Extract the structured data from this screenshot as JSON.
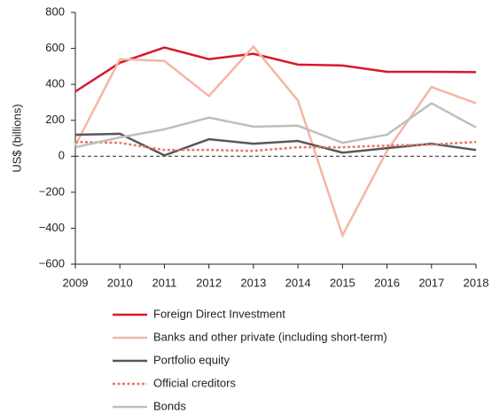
{
  "chart_data": {
    "type": "line",
    "y_label": "US$ (billions)",
    "x": [
      2009,
      2010,
      2011,
      2012,
      2013,
      2014,
      2015,
      2016,
      2017,
      2018
    ],
    "xlim": [
      2009,
      2018
    ],
    "xticks": [
      2009,
      2010,
      2011,
      2012,
      2013,
      2014,
      2015,
      2016,
      2017,
      2018
    ],
    "ylim": [
      -600,
      800
    ],
    "yticks": [
      {
        "value": -600,
        "label": "−600"
      },
      {
        "value": -400,
        "label": "−400"
      },
      {
        "value": -200,
        "label": "−200"
      },
      0,
      200,
      400,
      600,
      800
    ],
    "series": [
      {
        "name": "Foreign Direct Investment",
        "color": "#d7192a",
        "style": "solid",
        "values": [
          360,
          520,
          605,
          540,
          570,
          510,
          505,
          470,
          470,
          468
        ]
      },
      {
        "name": "Banks and other private (including short-term)",
        "color": "#f4b6a5",
        "style": "solid",
        "values": [
          60,
          540,
          530,
          335,
          610,
          310,
          -440,
          30,
          385,
          295
        ]
      },
      {
        "name": "Portfolio equity",
        "color": "#58585a",
        "style": "solid",
        "values": [
          120,
          125,
          5,
          95,
          70,
          85,
          20,
          45,
          70,
          35
        ]
      },
      {
        "name": "Official creditors",
        "color": "#e8756a",
        "style": "dotted",
        "values": [
          80,
          75,
          35,
          35,
          30,
          50,
          50,
          60,
          65,
          80
        ]
      },
      {
        "name": "Bonds",
        "color": "#bfbfbf",
        "style": "solid",
        "values": [
          50,
          105,
          150,
          215,
          165,
          170,
          75,
          120,
          295,
          160
        ]
      }
    ]
  }
}
